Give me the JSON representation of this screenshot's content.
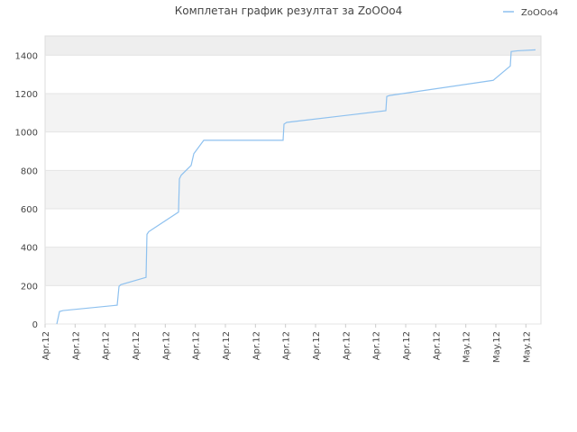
{
  "chart_data": {
    "type": "line",
    "title": "Комплетан график резултат за ZoOOo4",
    "x": [
      0.39,
      0.48,
      0.6,
      2.4,
      2.46,
      2.52,
      3.36,
      3.39,
      3.45,
      4.44,
      4.47,
      4.53,
      4.86,
      4.95,
      5.28,
      7.92,
      7.95,
      8.04,
      11.34,
      11.37,
      11.46,
      14.91,
      15.48,
      15.51,
      15.72,
      16.32
    ],
    "series": [
      {
        "name": "ZoOOo4",
        "color": "#8ec1ef",
        "values": [
          0,
          65,
          70,
          98,
          196,
          205,
          243,
          467,
          481,
          583,
          756,
          775,
          826,
          887,
          957,
          957,
          1041,
          1050,
          1111,
          1185,
          1190,
          1269,
          1344,
          1419,
          1423,
          1428
        ]
      }
    ],
    "xlim": [
      0,
      16.5
    ],
    "xticks": [
      {
        "value": 0,
        "label": "Apr.12"
      },
      {
        "value": 1,
        "label": "Apr.12"
      },
      {
        "value": 2,
        "label": "Apr.12"
      },
      {
        "value": 3,
        "label": "Apr.12"
      },
      {
        "value": 4,
        "label": "Apr.12"
      },
      {
        "value": 5,
        "label": "Apr.12"
      },
      {
        "value": 6,
        "label": "Apr.12"
      },
      {
        "value": 7,
        "label": "Apr.12"
      },
      {
        "value": 8,
        "label": "Apr.12"
      },
      {
        "value": 9,
        "label": "Apr.12"
      },
      {
        "value": 10,
        "label": "Apr.12"
      },
      {
        "value": 11,
        "label": "Apr.12"
      },
      {
        "value": 12,
        "label": "Apr.12"
      },
      {
        "value": 13,
        "label": "Apr.12"
      },
      {
        "value": 14,
        "label": "May.12"
      },
      {
        "value": 15,
        "label": "May.12"
      },
      {
        "value": 16,
        "label": "May.12"
      }
    ],
    "ylim": [
      0,
      1500
    ],
    "yticks": [
      0,
      200,
      400,
      600,
      800,
      1000,
      1200,
      1400
    ],
    "grid": true,
    "legend": "top-right"
  }
}
